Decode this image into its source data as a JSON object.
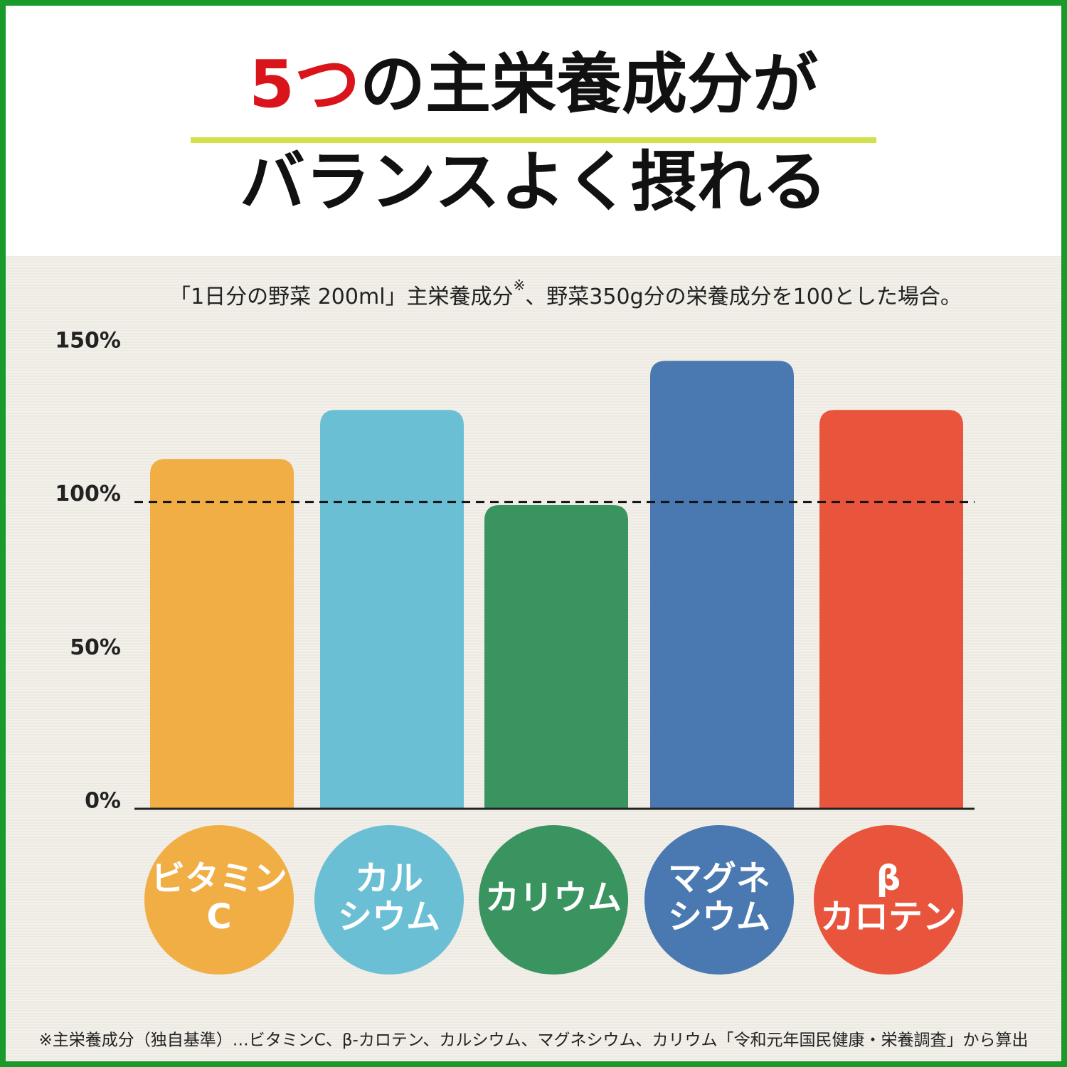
{
  "chart_data": {
    "type": "bar",
    "title": [
      "5つ",
      "の主栄養成分が"
    ],
    "title_line2": "バランスよく摂れる",
    "subtitle": [
      "「1日分の野菜 200ml」主栄養成分",
      "※",
      "、野菜350g分の栄養成分を100とした場合。"
    ],
    "categories": [
      [
        "ビタミン",
        "C"
      ],
      [
        "カル",
        "シウム"
      ],
      [
        "カリウム"
      ],
      [
        "マグネ",
        "シウム"
      ],
      [
        "β",
        "カロテン"
      ]
    ],
    "values": [
      114,
      130,
      99,
      146,
      130
    ],
    "colors": [
      "#f0ae45",
      "#6bbfd4",
      "#3a9460",
      "#4a78b0",
      "#e8553c"
    ],
    "ylim": [
      0,
      150
    ],
    "yticks": [
      {
        "value": 0,
        "label": "0%"
      },
      {
        "value": 50,
        "label": "50%"
      },
      {
        "value": 100,
        "label": "100%"
      },
      {
        "value": 150,
        "label": "150%"
      }
    ],
    "reference_value": 100,
    "footnote": "※主栄養成分（独自基準）…ビタミンC、β-カロテン、カルシウム、マグネシウム、カリウム「令和元年国民健康・栄養調査」から算出"
  }
}
